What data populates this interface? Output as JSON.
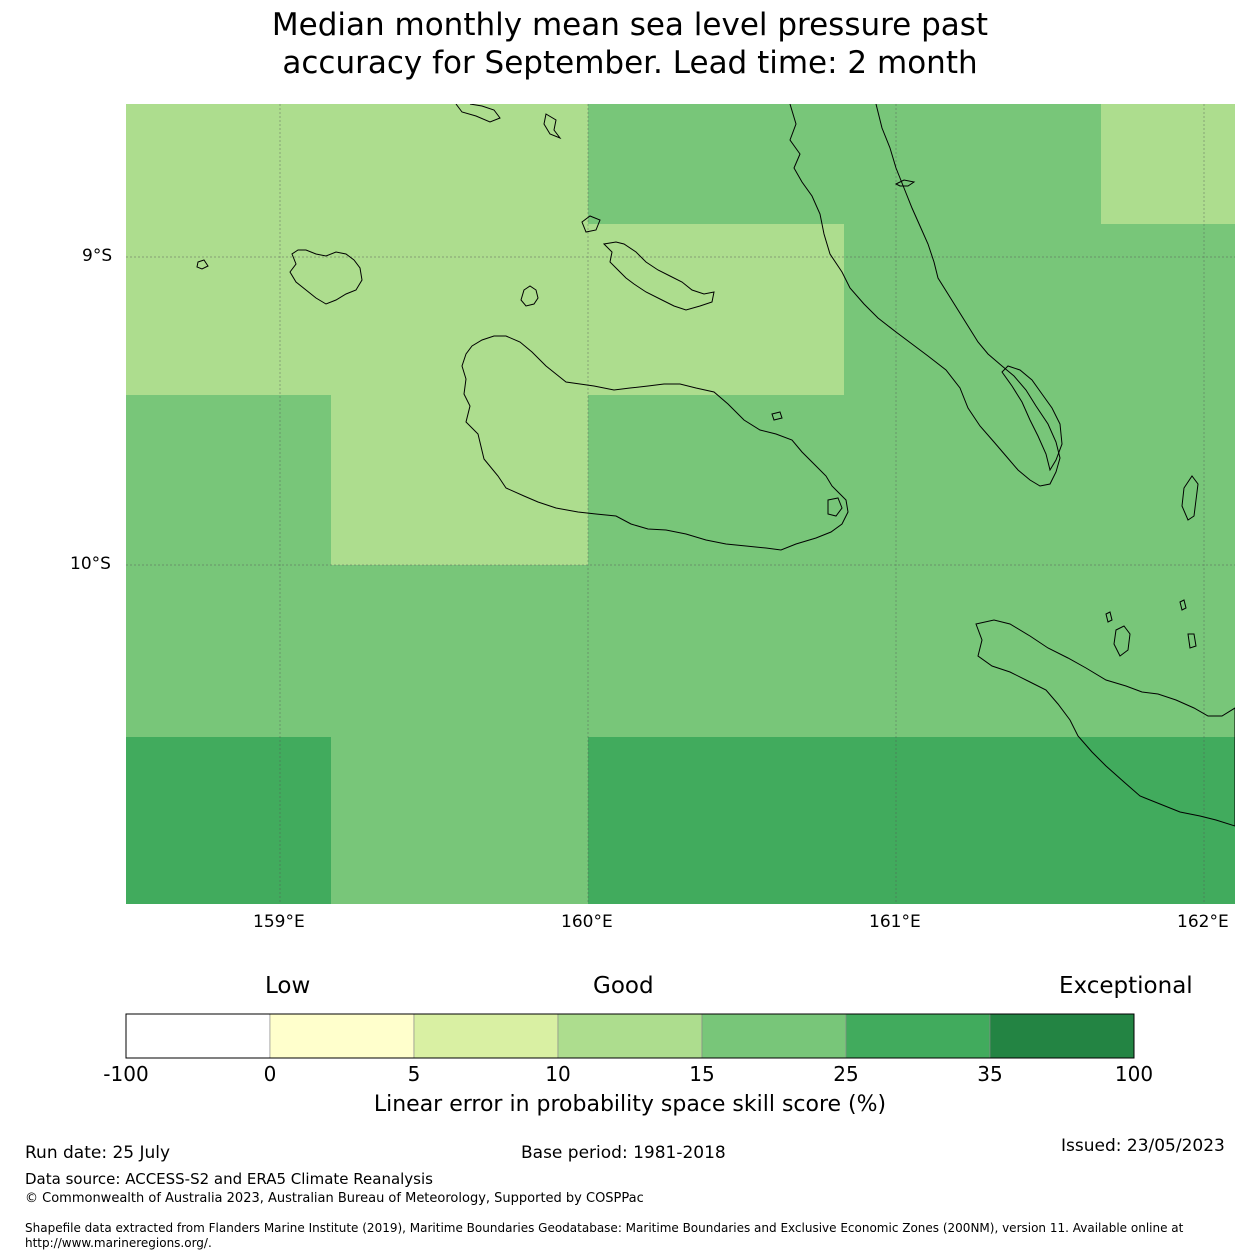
{
  "title_line1": "Median monthly mean sea level pressure past",
  "title_line2": "accuracy for September. Lead time: 2 month",
  "map": {
    "lon_labels": [
      "159°E",
      "160°E",
      "161°E",
      "162°E"
    ],
    "lat_labels": [
      "9°S",
      "10°S"
    ],
    "coastline_color": "#000000",
    "grid_color": "#555555"
  },
  "colorbar": {
    "categories": [
      "Low",
      "Good",
      "Exceptional"
    ],
    "ticks": [
      "-100",
      "0",
      "5",
      "10",
      "15",
      "25",
      "35",
      "100"
    ],
    "colors": [
      "#ffffff",
      "#ffffcc",
      "#d9f0a3",
      "#addd8e",
      "#78c679",
      "#41ab5d",
      "#238443"
    ],
    "label": "Linear error in probability space skill score (%)"
  },
  "footer": {
    "run_date": "Run date: 25 July",
    "base_period": "Base period: 1981-2018",
    "issued": "Issued: 23/05/2023",
    "data_source": "Data source: ACCESS-S2 and ERA5 Climate Reanalysis",
    "copyright": "© Commonwealth of Australia 2023, Australian Bureau of Meteorology, Supported by COSPPac",
    "shapefile_line1": "Shapefile data extracted from Flanders Marine Institute (2019), Maritime Boundaries Geodatabase: Maritime Boundaries and Exclusive Economic Zones (200NM), version 11. Available online at",
    "shapefile_line2": "http://www.marineregions.org/."
  }
}
